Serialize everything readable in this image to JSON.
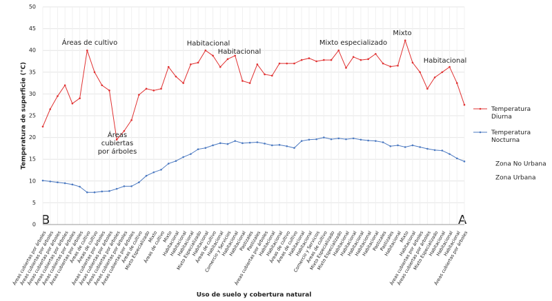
{
  "chart_data": {
    "type": "line",
    "y_axis_label": "Temperatura de superficie (°C)",
    "x_axis_label": "Uso de suelo y cobertura natural",
    "endpoints": [
      "B",
      "A"
    ],
    "categories": [
      "Áreas cubiertas por árboles",
      "Áreas cubiertas por árboles",
      "Áreas cubiertas por árboles",
      "Áreas cubiertas por árboles",
      "Áreas cubiertas por árboles",
      "Áreas cubiertas por árboles",
      "Áreas de cultivo",
      "Áreas de cultivo",
      "Áreas cubiertas por árboles",
      "Áreas cubiertas por árboles",
      "Áreas cubiertas por árboles",
      "Áreas cubiertas por árboles",
      "Áreas cubiertas por árboles",
      "Áreas de cultivo",
      "Mixto Especializado",
      "Mixto",
      "Áreas de cultivo",
      "Mixto",
      "Habitacional",
      "Habitacional",
      "Habitacional",
      "Mixto Especializado",
      "Habitacional",
      "Áreas de cultivo",
      "Habitacional",
      "Comercio y Servicios",
      "Habitacional",
      "Habitacional",
      "Pastizales",
      "Pastizales",
      "Áreas cubiertas por árboles",
      "Habitacional",
      "Habitacional",
      "Áreas de cultivo",
      "Áreas de cultivo",
      "Habitacional",
      "Habitacional",
      "Comercio y Servicios",
      "Áreas de cultivo",
      "Mixto Especializado",
      "Mixto Especializado",
      "Habitacional",
      "Habitacional",
      "Habitacional",
      "Habitacional",
      "Habitacional",
      "Pastizales",
      "Pastizales",
      "Habitacional",
      "Mixto",
      "Habitacional",
      "Áreas cubiertas por árboles",
      "Áreas cubiertas por árboles",
      "Mixto Especializado",
      "Habitacional",
      "Habitacional",
      "Habitacional",
      "Áreas cubiertas por árboles"
    ],
    "series": [
      {
        "name": "Temperatura Diurna",
        "color": "#e03030",
        "values": [
          22.5,
          26.5,
          29.5,
          32,
          27.8,
          29,
          40,
          35,
          32,
          30.8,
          19.5,
          21.5,
          24,
          29.8,
          31.2,
          30.8,
          31.2,
          36.2,
          34,
          32.5,
          36.8,
          37.2,
          40,
          38.8,
          36.2,
          38,
          38.8,
          33,
          32.5,
          36.8,
          34.5,
          34.2,
          37,
          37,
          37,
          37.8,
          38.2,
          37.5,
          37.8,
          37.8,
          40,
          36,
          38.5,
          37.8,
          38,
          39.2,
          37,
          36.3,
          36.5,
          42.3,
          37.2,
          35,
          31.2,
          33.8,
          35,
          36.2,
          32.5,
          27.5
        ]
      },
      {
        "name": "Temperatura Nocturna",
        "color": "#4a78c0",
        "values": [
          10.1,
          9.9,
          9.7,
          9.5,
          9.2,
          8.7,
          7.4,
          7.4,
          7.6,
          7.7,
          8.2,
          8.8,
          8.8,
          9.7,
          11.2,
          12,
          12.6,
          14,
          14.6,
          15.5,
          16.2,
          17.3,
          17.6,
          18.2,
          18.7,
          18.5,
          19.2,
          18.7,
          18.8,
          18.9,
          18.6,
          18.2,
          18.3,
          18,
          17.6,
          19.2,
          19.5,
          19.6,
          20,
          19.6,
          19.8,
          19.6,
          19.8,
          19.5,
          19.3,
          19.2,
          18.9,
          18,
          18.2,
          17.8,
          18.2,
          17.8,
          17.4,
          17.1,
          17,
          16.2,
          15.2,
          14.5
        ]
      }
    ],
    "legend_extra": [
      "Zona No Urbana",
      "Zona Urbana"
    ],
    "annotations": [
      [
        "Áreas de cultivo"
      ],
      [
        "Áreas",
        "cubiertas",
        "por árboles"
      ],
      [
        "Habitacional"
      ],
      [
        "Habitacional"
      ],
      [
        "Mixto especializado"
      ],
      [
        "Mixto"
      ],
      [
        "Habitacional"
      ]
    ],
    "ylim": [
      0,
      50
    ],
    "yticks": [
      0,
      5,
      10,
      15,
      20,
      25,
      30,
      35,
      40,
      45,
      50
    ],
    "grid": true
  }
}
